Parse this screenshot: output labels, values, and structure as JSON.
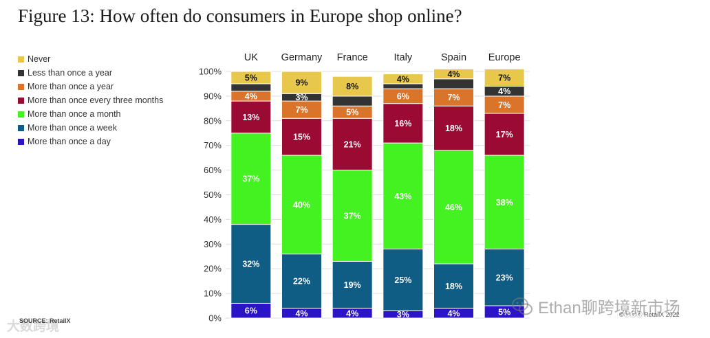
{
  "title": "Figure 13: How often do consumers in Europe shop online?",
  "source": "SOURCE: RetailX",
  "watermark_left": "大数跨境",
  "watermark_right": "Ethan聊跨境新市场",
  "copyright": "©ⓘⓢⓔ RetailX 2022",
  "colors": {
    "never": "#e8c84a",
    "less_than_once_a_year": "#333333",
    "more_than_once_a_year": "#d9742a",
    "every_three_months": "#9a0a33",
    "once_a_month": "#45f221",
    "once_a_week": "#0f5c85",
    "once_a_day": "#2b13c7"
  },
  "chart_data": {
    "type": "bar",
    "stacked": true,
    "categories": [
      "UK",
      "Germany",
      "France",
      "Italy",
      "Spain",
      "Europe"
    ],
    "ylim": [
      0,
      100
    ],
    "yticks": [
      "0%",
      "10%",
      "20%",
      "30%",
      "40%",
      "50%",
      "60%",
      "70%",
      "80%",
      "90%",
      "100%"
    ],
    "grid": true,
    "legend_position": "left",
    "series": [
      {
        "name": "More than once a day",
        "color": "#2b13c7",
        "values": [
          6,
          4,
          4,
          3,
          4,
          5
        ],
        "labels": [
          "6%",
          "4%",
          "4%",
          "3%",
          "4%",
          "5%"
        ],
        "label_color": "#ffffff"
      },
      {
        "name": "More than once a week",
        "color": "#0f5c85",
        "values": [
          32,
          22,
          19,
          25,
          18,
          23
        ],
        "labels": [
          "32%",
          "22%",
          "19%",
          "25%",
          "18%",
          "23%"
        ],
        "label_color": "#ffffff"
      },
      {
        "name": "More than once a month",
        "color": "#45f221",
        "values": [
          37,
          40,
          37,
          43,
          46,
          38
        ],
        "labels": [
          "37%",
          "40%",
          "37%",
          "43%",
          "46%",
          "38%"
        ],
        "label_color": "#ffffff"
      },
      {
        "name": "More than once every three months",
        "color": "#9a0a33",
        "values": [
          13,
          15,
          21,
          16,
          18,
          17
        ],
        "labels": [
          "13%",
          "15%",
          "21%",
          "16%",
          "18%",
          "17%"
        ],
        "label_color": "#ffffff"
      },
      {
        "name": "More than once a year",
        "color": "#d9742a",
        "values": [
          4,
          7,
          5,
          6,
          7,
          7
        ],
        "labels": [
          "4%",
          "7%",
          "5%",
          "6%",
          "7%",
          "7%"
        ],
        "label_color": "#ffffff"
      },
      {
        "name": "Less than once a year",
        "color": "#333333",
        "values": [
          3,
          3,
          4,
          2,
          4,
          4
        ],
        "labels": [
          "",
          "3%",
          "",
          "",
          "",
          "4%"
        ],
        "label_color": "#ffffff"
      },
      {
        "name": "Never",
        "color": "#e8c84a",
        "values": [
          5,
          9,
          8,
          4,
          4,
          7
        ],
        "labels": [
          "5%",
          "9%",
          "8%",
          "4%",
          "4%",
          "7%"
        ],
        "label_color": "#111111"
      }
    ],
    "legend": [
      {
        "name": "Never",
        "color": "#e8c84a"
      },
      {
        "name": "Less than once a year",
        "color": "#333333"
      },
      {
        "name": "More than once a year",
        "color": "#d9742a"
      },
      {
        "name": "More than once every three months",
        "color": "#9a0a33"
      },
      {
        "name": "More than once a month",
        "color": "#45f221"
      },
      {
        "name": "More than once a week",
        "color": "#0f5c85"
      },
      {
        "name": "More than once a day",
        "color": "#2b13c7"
      }
    ]
  }
}
